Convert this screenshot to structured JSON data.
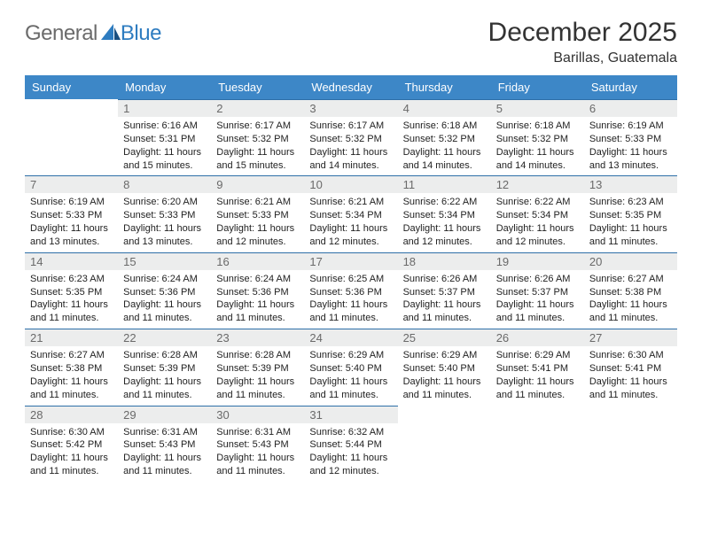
{
  "logo": {
    "general": "General",
    "blue": "Blue"
  },
  "title": "December 2025",
  "subtitle": "Barillas, Guatemala",
  "colors": {
    "header_bg": "#3d87c7",
    "header_text": "#ffffff",
    "daynum_bg": "#eceded",
    "daynum_text": "#6a6a6a",
    "cell_border_top": "#2e6fa8",
    "body_text": "#222222",
    "logo_gray": "#6b6b6b",
    "logo_blue": "#2e7cc0"
  },
  "day_labels": [
    "Sunday",
    "Monday",
    "Tuesday",
    "Wednesday",
    "Thursday",
    "Friday",
    "Saturday"
  ],
  "weeks": [
    [
      null,
      {
        "n": "1",
        "sunrise": "Sunrise: 6:16 AM",
        "sunset": "Sunset: 5:31 PM",
        "daylight": "Daylight: 11 hours and 15 minutes."
      },
      {
        "n": "2",
        "sunrise": "Sunrise: 6:17 AM",
        "sunset": "Sunset: 5:32 PM",
        "daylight": "Daylight: 11 hours and 15 minutes."
      },
      {
        "n": "3",
        "sunrise": "Sunrise: 6:17 AM",
        "sunset": "Sunset: 5:32 PM",
        "daylight": "Daylight: 11 hours and 14 minutes."
      },
      {
        "n": "4",
        "sunrise": "Sunrise: 6:18 AM",
        "sunset": "Sunset: 5:32 PM",
        "daylight": "Daylight: 11 hours and 14 minutes."
      },
      {
        "n": "5",
        "sunrise": "Sunrise: 6:18 AM",
        "sunset": "Sunset: 5:32 PM",
        "daylight": "Daylight: 11 hours and 14 minutes."
      },
      {
        "n": "6",
        "sunrise": "Sunrise: 6:19 AM",
        "sunset": "Sunset: 5:33 PM",
        "daylight": "Daylight: 11 hours and 13 minutes."
      }
    ],
    [
      {
        "n": "7",
        "sunrise": "Sunrise: 6:19 AM",
        "sunset": "Sunset: 5:33 PM",
        "daylight": "Daylight: 11 hours and 13 minutes."
      },
      {
        "n": "8",
        "sunrise": "Sunrise: 6:20 AM",
        "sunset": "Sunset: 5:33 PM",
        "daylight": "Daylight: 11 hours and 13 minutes."
      },
      {
        "n": "9",
        "sunrise": "Sunrise: 6:21 AM",
        "sunset": "Sunset: 5:33 PM",
        "daylight": "Daylight: 11 hours and 12 minutes."
      },
      {
        "n": "10",
        "sunrise": "Sunrise: 6:21 AM",
        "sunset": "Sunset: 5:34 PM",
        "daylight": "Daylight: 11 hours and 12 minutes."
      },
      {
        "n": "11",
        "sunrise": "Sunrise: 6:22 AM",
        "sunset": "Sunset: 5:34 PM",
        "daylight": "Daylight: 11 hours and 12 minutes."
      },
      {
        "n": "12",
        "sunrise": "Sunrise: 6:22 AM",
        "sunset": "Sunset: 5:34 PM",
        "daylight": "Daylight: 11 hours and 12 minutes."
      },
      {
        "n": "13",
        "sunrise": "Sunrise: 6:23 AM",
        "sunset": "Sunset: 5:35 PM",
        "daylight": "Daylight: 11 hours and 11 minutes."
      }
    ],
    [
      {
        "n": "14",
        "sunrise": "Sunrise: 6:23 AM",
        "sunset": "Sunset: 5:35 PM",
        "daylight": "Daylight: 11 hours and 11 minutes."
      },
      {
        "n": "15",
        "sunrise": "Sunrise: 6:24 AM",
        "sunset": "Sunset: 5:36 PM",
        "daylight": "Daylight: 11 hours and 11 minutes."
      },
      {
        "n": "16",
        "sunrise": "Sunrise: 6:24 AM",
        "sunset": "Sunset: 5:36 PM",
        "daylight": "Daylight: 11 hours and 11 minutes."
      },
      {
        "n": "17",
        "sunrise": "Sunrise: 6:25 AM",
        "sunset": "Sunset: 5:36 PM",
        "daylight": "Daylight: 11 hours and 11 minutes."
      },
      {
        "n": "18",
        "sunrise": "Sunrise: 6:26 AM",
        "sunset": "Sunset: 5:37 PM",
        "daylight": "Daylight: 11 hours and 11 minutes."
      },
      {
        "n": "19",
        "sunrise": "Sunrise: 6:26 AM",
        "sunset": "Sunset: 5:37 PM",
        "daylight": "Daylight: 11 hours and 11 minutes."
      },
      {
        "n": "20",
        "sunrise": "Sunrise: 6:27 AM",
        "sunset": "Sunset: 5:38 PM",
        "daylight": "Daylight: 11 hours and 11 minutes."
      }
    ],
    [
      {
        "n": "21",
        "sunrise": "Sunrise: 6:27 AM",
        "sunset": "Sunset: 5:38 PM",
        "daylight": "Daylight: 11 hours and 11 minutes."
      },
      {
        "n": "22",
        "sunrise": "Sunrise: 6:28 AM",
        "sunset": "Sunset: 5:39 PM",
        "daylight": "Daylight: 11 hours and 11 minutes."
      },
      {
        "n": "23",
        "sunrise": "Sunrise: 6:28 AM",
        "sunset": "Sunset: 5:39 PM",
        "daylight": "Daylight: 11 hours and 11 minutes."
      },
      {
        "n": "24",
        "sunrise": "Sunrise: 6:29 AM",
        "sunset": "Sunset: 5:40 PM",
        "daylight": "Daylight: 11 hours and 11 minutes."
      },
      {
        "n": "25",
        "sunrise": "Sunrise: 6:29 AM",
        "sunset": "Sunset: 5:40 PM",
        "daylight": "Daylight: 11 hours and 11 minutes."
      },
      {
        "n": "26",
        "sunrise": "Sunrise: 6:29 AM",
        "sunset": "Sunset: 5:41 PM",
        "daylight": "Daylight: 11 hours and 11 minutes."
      },
      {
        "n": "27",
        "sunrise": "Sunrise: 6:30 AM",
        "sunset": "Sunset: 5:41 PM",
        "daylight": "Daylight: 11 hours and 11 minutes."
      }
    ],
    [
      {
        "n": "28",
        "sunrise": "Sunrise: 6:30 AM",
        "sunset": "Sunset: 5:42 PM",
        "daylight": "Daylight: 11 hours and 11 minutes."
      },
      {
        "n": "29",
        "sunrise": "Sunrise: 6:31 AM",
        "sunset": "Sunset: 5:43 PM",
        "daylight": "Daylight: 11 hours and 11 minutes."
      },
      {
        "n": "30",
        "sunrise": "Sunrise: 6:31 AM",
        "sunset": "Sunset: 5:43 PM",
        "daylight": "Daylight: 11 hours and 11 minutes."
      },
      {
        "n": "31",
        "sunrise": "Sunrise: 6:32 AM",
        "sunset": "Sunset: 5:44 PM",
        "daylight": "Daylight: 11 hours and 12 minutes."
      },
      null,
      null,
      null
    ]
  ]
}
